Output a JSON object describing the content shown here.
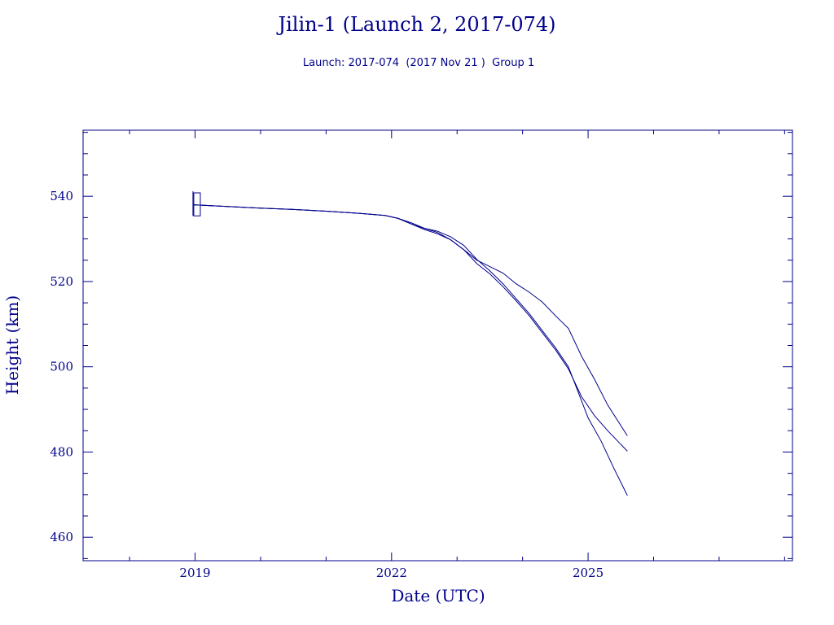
{
  "chart_data": {
    "type": "line",
    "title": "Jilin-1 (Launch 2, 2017-074)",
    "subtitle": "Launch: 2017-074  (2017 Nov 21 )  Group 1",
    "xlabel": "Date (UTC)",
    "ylabel": "Height (km)",
    "xlim": [
      2017.29,
      2028.12
    ],
    "ylim": [
      454.5,
      555.5
    ],
    "x_ticks": [
      2019,
      2022,
      2025
    ],
    "y_ticks": [
      460,
      480,
      500,
      520,
      540
    ],
    "grid": false,
    "color": "#00008b",
    "series": [
      {
        "x": [
          2018.98,
          2019.0,
          2019.5,
          2020.0,
          2020.5,
          2021.0,
          2021.5,
          2021.9,
          2022.1,
          2022.3,
          2022.5,
          2022.7,
          2022.9,
          2023.1,
          2023.3,
          2023.5,
          2023.7,
          2023.9,
          2024.1,
          2024.3,
          2024.5,
          2024.7,
          2024.85,
          2025.0,
          2025.2,
          2025.4,
          2025.6
        ],
        "y": [
          538.0,
          538.0,
          537.6,
          537.2,
          536.9,
          536.5,
          536.0,
          535.5,
          534.8,
          533.8,
          532.5,
          531.8,
          530.5,
          528.5,
          525.2,
          522.5,
          519.5,
          516.0,
          512.5,
          508.5,
          504.5,
          500.0,
          494.0,
          488.0,
          482.5,
          476.0,
          469.8
        ]
      },
      {
        "x": [
          2018.98,
          2019.0,
          2019.5,
          2020.0,
          2020.5,
          2021.0,
          2021.5,
          2021.9,
          2022.1,
          2022.3,
          2022.5,
          2022.7,
          2022.9,
          2023.1,
          2023.3,
          2023.5,
          2023.7,
          2023.9,
          2024.1,
          2024.3,
          2024.5,
          2024.7,
          2024.9,
          2025.1,
          2025.3,
          2025.6
        ],
        "y": [
          538.0,
          538.0,
          537.6,
          537.2,
          536.9,
          536.5,
          536.0,
          535.5,
          534.8,
          533.5,
          532.2,
          531.2,
          529.8,
          527.5,
          524.2,
          521.8,
          518.8,
          515.5,
          512.0,
          508.0,
          504.0,
          499.5,
          493.0,
          488.5,
          485.0,
          480.2
        ]
      },
      {
        "x": [
          2018.98,
          2019.0,
          2019.5,
          2020.0,
          2020.5,
          2021.0,
          2021.5,
          2021.9,
          2022.1,
          2022.3,
          2022.5,
          2022.7,
          2022.9,
          2023.1,
          2023.3,
          2023.5,
          2023.7,
          2023.9,
          2024.1,
          2024.3,
          2024.5,
          2024.7,
          2024.9,
          2025.1,
          2025.3,
          2025.6
        ],
        "y": [
          538.0,
          538.0,
          537.6,
          537.2,
          536.9,
          536.5,
          536.0,
          535.5,
          534.8,
          533.5,
          532.5,
          531.5,
          529.8,
          527.5,
          525.0,
          523.5,
          522.0,
          519.5,
          517.5,
          515.2,
          512.0,
          509.0,
          502.5,
          497.0,
          491.0,
          483.8
        ]
      }
    ],
    "launch_marker": {
      "x": [
        2018.98,
        2019.08
      ],
      "y": [
        535.4,
        540.8
      ]
    }
  }
}
